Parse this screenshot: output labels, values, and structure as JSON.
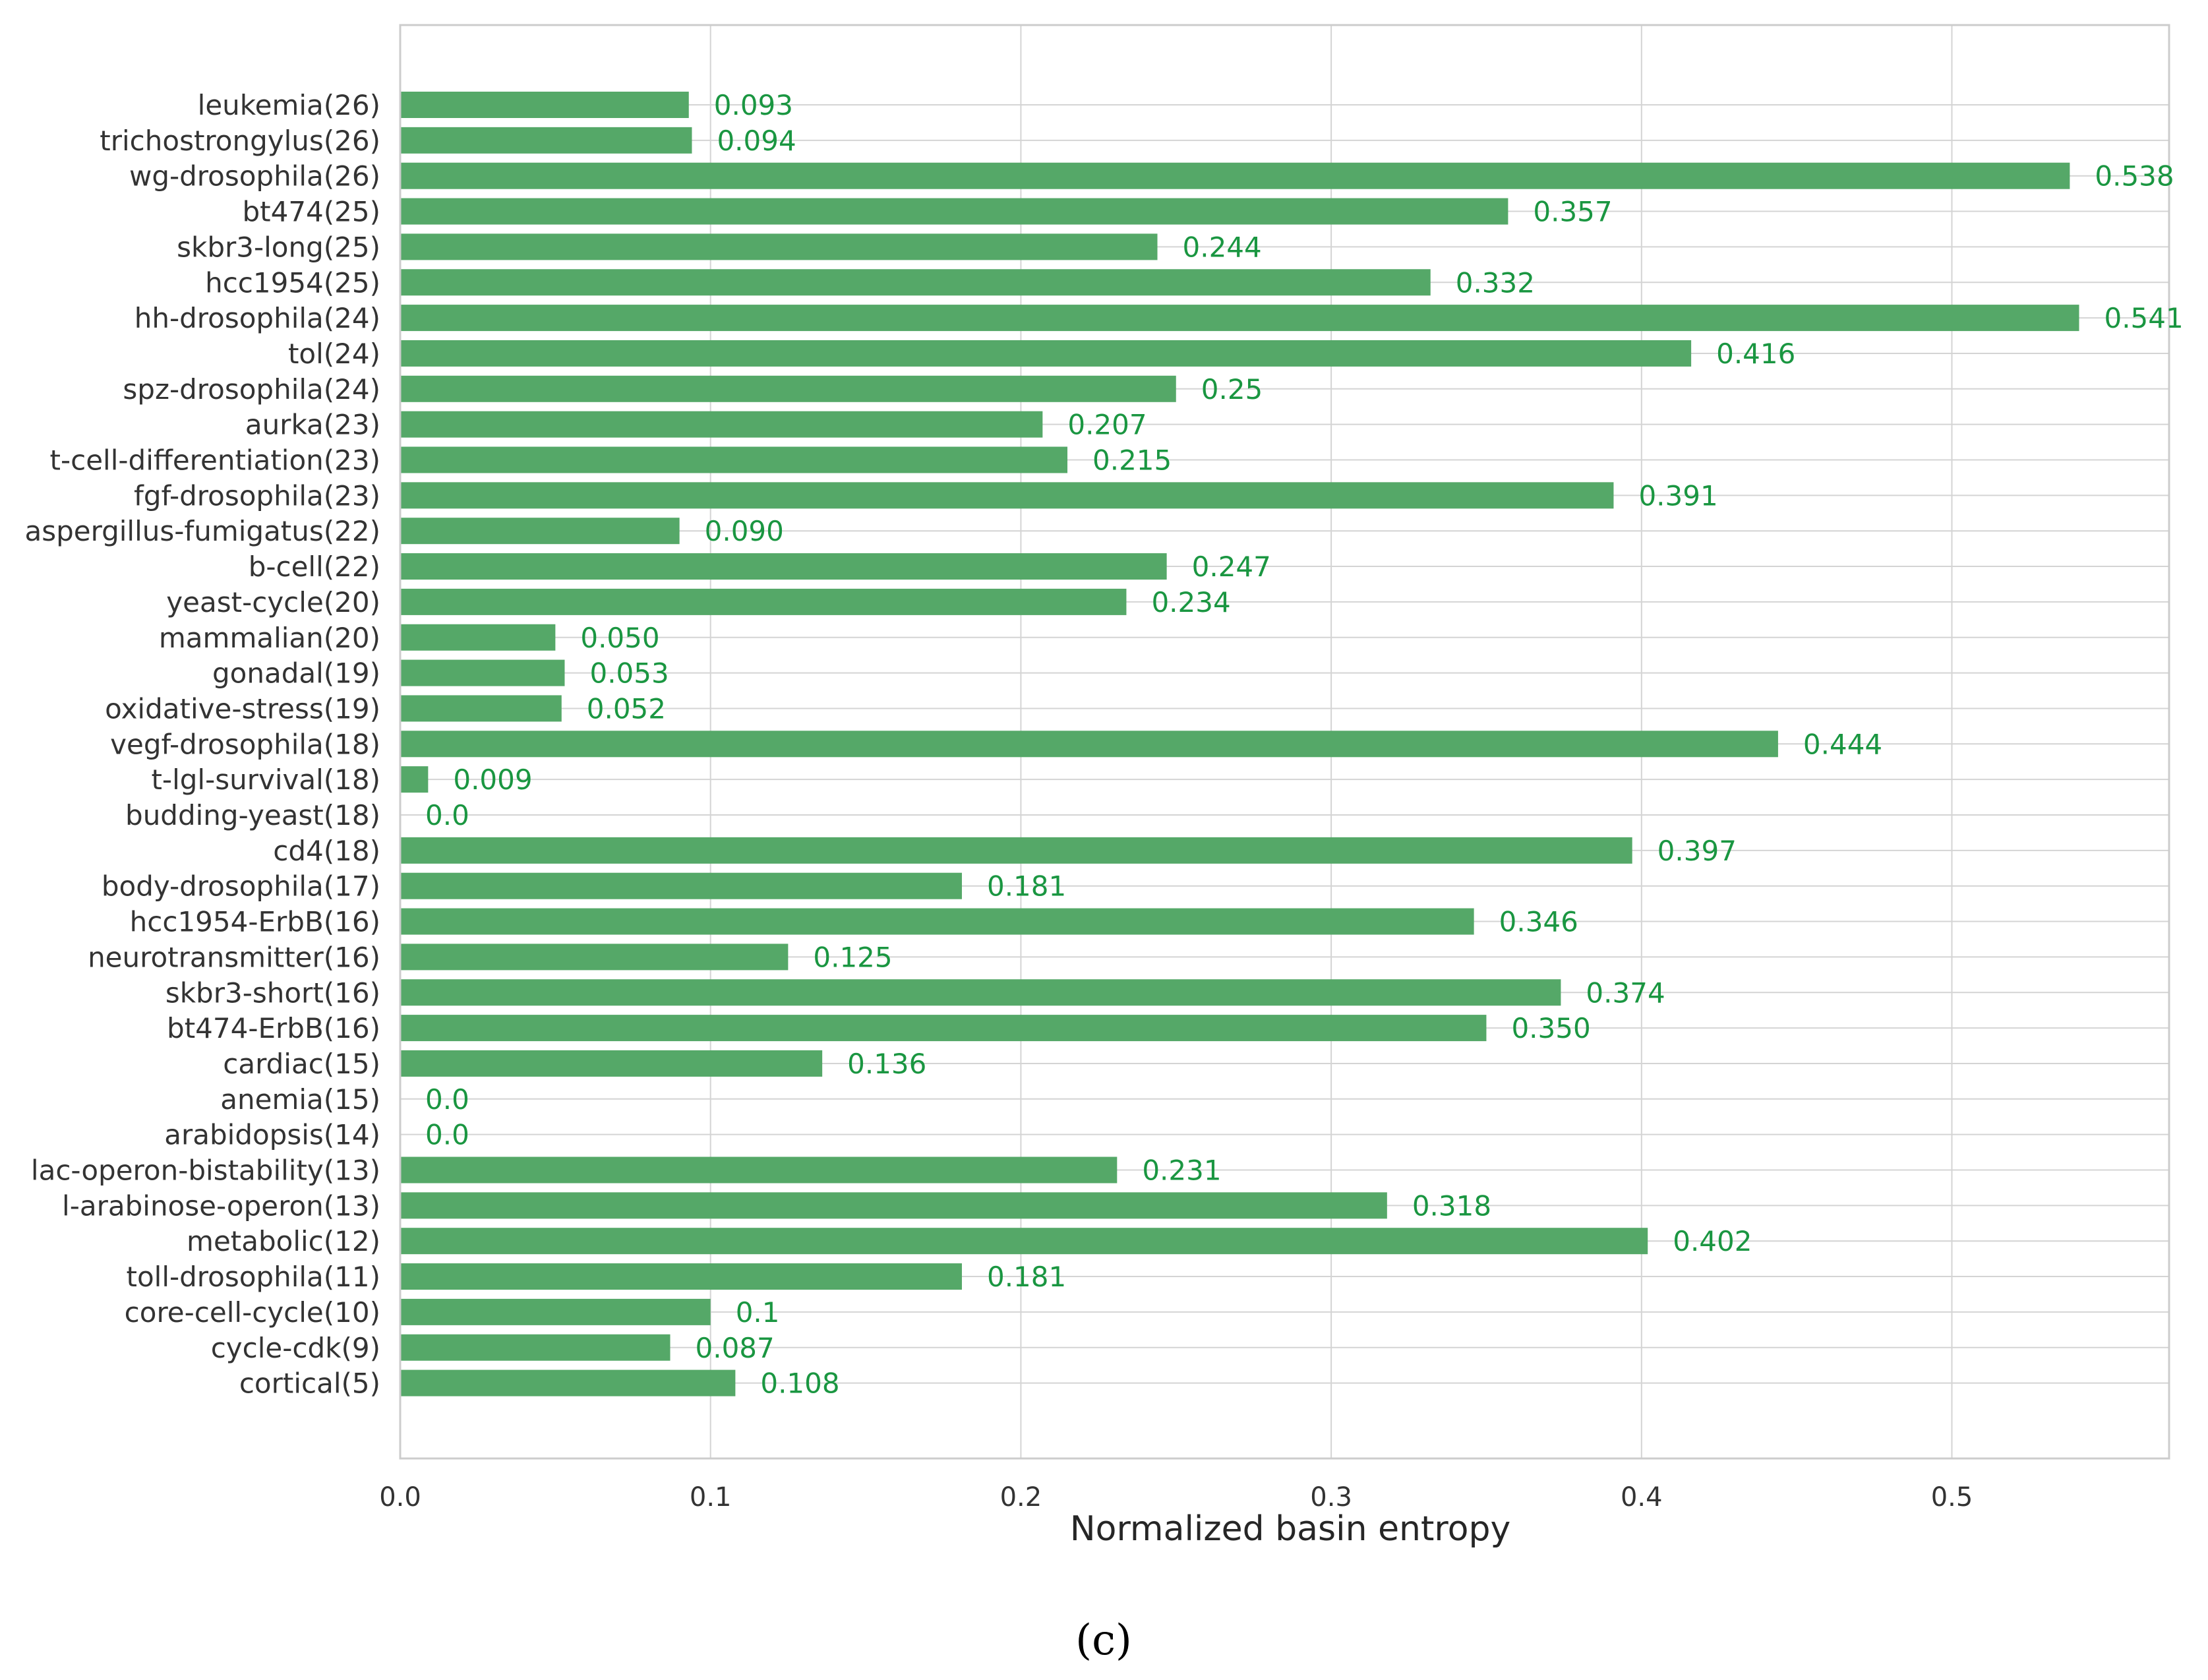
{
  "chart_data": {
    "type": "bar",
    "orientation": "horizontal",
    "xlabel": "Normalized basin entropy",
    "xlim": [
      0.0,
      0.57
    ],
    "xticks": [
      "0.0",
      "0.1",
      "0.2",
      "0.3",
      "0.4",
      "0.5"
    ],
    "grid": true,
    "panel_label": "(c)",
    "bar_color": "#55a868",
    "label_color": "#1a9641",
    "categories": [
      "leukemia(26)",
      "trichostrongylus(26)",
      "wg-drosophila(26)",
      "bt474(25)",
      "skbr3-long(25)",
      "hcc1954(25)",
      "hh-drosophila(24)",
      "tol(24)",
      "spz-drosophila(24)",
      "aurka(23)",
      "t-cell-differentiation(23)",
      "fgf-drosophila(23)",
      "aspergillus-fumigatus(22)",
      "b-cell(22)",
      "yeast-cycle(20)",
      "mammalian(20)",
      "gonadal(19)",
      "oxidative-stress(19)",
      "vegf-drosophila(18)",
      "t-lgl-survival(18)",
      "budding-yeast(18)",
      "cd4(18)",
      "body-drosophila(17)",
      "hcc1954-ErbB(16)",
      "neurotransmitter(16)",
      "skbr3-short(16)",
      "bt474-ErbB(16)",
      "cardiac(15)",
      "anemia(15)",
      "arabidopsis(14)",
      "lac-operon-bistability(13)",
      "l-arabinose-operon(13)",
      "metabolic(12)",
      "toll-drosophila(11)",
      "core-cell-cycle(10)",
      "cycle-cdk(9)",
      "cortical(5)"
    ],
    "values": [
      0.093,
      0.094,
      0.538,
      0.357,
      0.244,
      0.332,
      0.541,
      0.416,
      0.25,
      0.207,
      0.215,
      0.391,
      0.09,
      0.247,
      0.234,
      0.05,
      0.053,
      0.052,
      0.444,
      0.009,
      0.0,
      0.397,
      0.181,
      0.346,
      0.125,
      0.374,
      0.35,
      0.136,
      0.0,
      0.0,
      0.231,
      0.318,
      0.402,
      0.181,
      0.1,
      0.087,
      0.108
    ],
    "value_labels": [
      "0.093",
      "0.094",
      "0.538",
      "0.357",
      "0.244",
      "0.332",
      "0.541",
      "0.416",
      "0.25",
      "0.207",
      "0.215",
      "0.391",
      "0.090",
      "0.247",
      "0.234",
      "0.050",
      "0.053",
      "0.052",
      "0.444",
      "0.009",
      "0.0",
      "0.397",
      "0.181",
      "0.346",
      "0.125",
      "0.374",
      "0.350",
      "0.136",
      "0.0",
      "0.0",
      "0.231",
      "0.318",
      "0.402",
      "0.181",
      "0.1",
      "0.087",
      "0.108"
    ]
  }
}
